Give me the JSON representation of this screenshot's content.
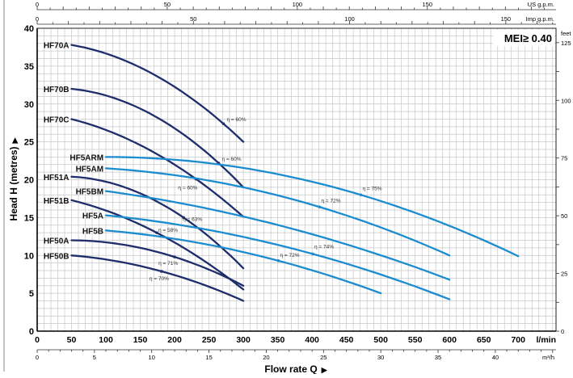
{
  "chart_data": {
    "type": "line",
    "title": "",
    "xlabel": "Flow rate Q",
    "ylabel": "Head H (metres)",
    "xlim": [
      0,
      755
    ],
    "ylim": [
      0,
      40
    ],
    "grid": true,
    "x_unit": "l/min",
    "x_ticks": [
      0,
      50,
      100,
      150,
      200,
      250,
      300,
      350,
      400,
      450,
      500,
      550,
      600,
      650,
      700
    ],
    "y_ticks": [
      0,
      5,
      10,
      15,
      20,
      25,
      30,
      35,
      40
    ],
    "secondary_axes": {
      "us_gpm": {
        "unit": "US g.p.m.",
        "ticks": [
          0,
          50,
          100,
          150
        ],
        "factor_lmin": 3.785
      },
      "imp_gpm": {
        "unit": "Imp g.p.m.",
        "ticks": [
          0,
          50,
          100,
          150
        ],
        "factor_lmin": 4.546
      },
      "m3h": {
        "unit": "m³/h",
        "ticks": [
          0,
          5,
          10,
          15,
          20,
          25,
          30,
          35,
          40
        ],
        "factor_lmin": 16.667
      },
      "feet": {
        "unit": "feet",
        "ticks": [
          0,
          25,
          50,
          75,
          100,
          125
        ],
        "factor_m": 0.3048
      }
    },
    "badge": "MEI≥ 0.40",
    "colors": {
      "dark": "#1e2d6b",
      "light": "#1b8ccf",
      "grid": "#c8c8c8"
    },
    "series": [
      {
        "name": "HF70A",
        "group": "dark",
        "points": [
          [
            50,
            37.8
          ],
          [
            271,
            27.4
          ],
          [
            300,
            25
          ]
        ],
        "eff": {
          "label": "η = 60%",
          "q": 271,
          "h": 27.4
        }
      },
      {
        "name": "HF70B",
        "group": "dark",
        "points": [
          [
            50,
            32
          ],
          [
            264,
            22.2
          ],
          [
            300,
            19
          ]
        ],
        "eff": {
          "label": "η = 60%",
          "q": 264,
          "h": 22.2
        }
      },
      {
        "name": "HF70C",
        "group": "dark",
        "points": [
          [
            50,
            28
          ],
          [
            231,
            20.1
          ],
          [
            300,
            15.1
          ]
        ],
        "eff": {
          "label": "η = 60%",
          "q": 231,
          "h": 20.1
        }
      },
      {
        "name": "HF51A",
        "group": "dark",
        "points": [
          [
            50,
            20.4
          ],
          [
            213,
            15.0
          ],
          [
            300,
            8.3
          ]
        ],
        "eff": {
          "label": "η = 63%",
          "q": 213,
          "h": 15.0
        }
      },
      {
        "name": "HF51B",
        "group": "dark",
        "points": [
          [
            50,
            17.3
          ],
          [
            174,
            13.0
          ],
          [
            300,
            5.5
          ]
        ],
        "eff": {
          "label": "η = 58%",
          "q": 174,
          "h": 13.0
        }
      },
      {
        "name": "HF50A",
        "group": "dark",
        "points": [
          [
            50,
            12
          ],
          [
            200,
            9.8
          ],
          [
            300,
            6.0
          ]
        ],
        "eff": {
          "label": "η = 71%",
          "q": 200,
          "h": 9.8
        }
      },
      {
        "name": "HF50B",
        "group": "dark",
        "points": [
          [
            50,
            10
          ],
          [
            181,
            7.9
          ],
          [
            300,
            4.0
          ]
        ],
        "eff": {
          "label": "η = 70%",
          "q": 181,
          "h": 7.9
        }
      },
      {
        "name": "HF5ARM",
        "group": "light",
        "points": [
          [
            100,
            23
          ],
          [
            471,
            18
          ],
          [
            700,
            9.9
          ]
        ],
        "eff": {
          "label": "η = 75%",
          "q": 471,
          "h": 18
        }
      },
      {
        "name": "HF5AM",
        "group": "light",
        "points": [
          [
            100,
            21.5
          ],
          [
            411,
            16.4
          ],
          [
            600,
            10
          ]
        ],
        "eff": {
          "label": "η = 72%",
          "q": 411,
          "h": 16.4
        }
      },
      {
        "name": "HF5BM",
        "group": "light",
        "points": [
          [
            100,
            18.5
          ],
          [
            400,
            12.8
          ],
          [
            600,
            6.8
          ]
        ],
        "eff": null
      },
      {
        "name": "HF5A",
        "group": "light",
        "points": [
          [
            100,
            15.3
          ],
          [
            401,
            10.2
          ],
          [
            600,
            4.2
          ]
        ],
        "eff": {
          "label": "η = 74%",
          "q": 401,
          "h": 10.2
        }
      },
      {
        "name": "HF5B",
        "group": "light",
        "points": [
          [
            100,
            13.3
          ],
          [
            351,
            9.3
          ],
          [
            500,
            5.0
          ]
        ],
        "eff": {
          "label": "η = 72%",
          "q": 351,
          "h": 9.3
        }
      }
    ]
  }
}
